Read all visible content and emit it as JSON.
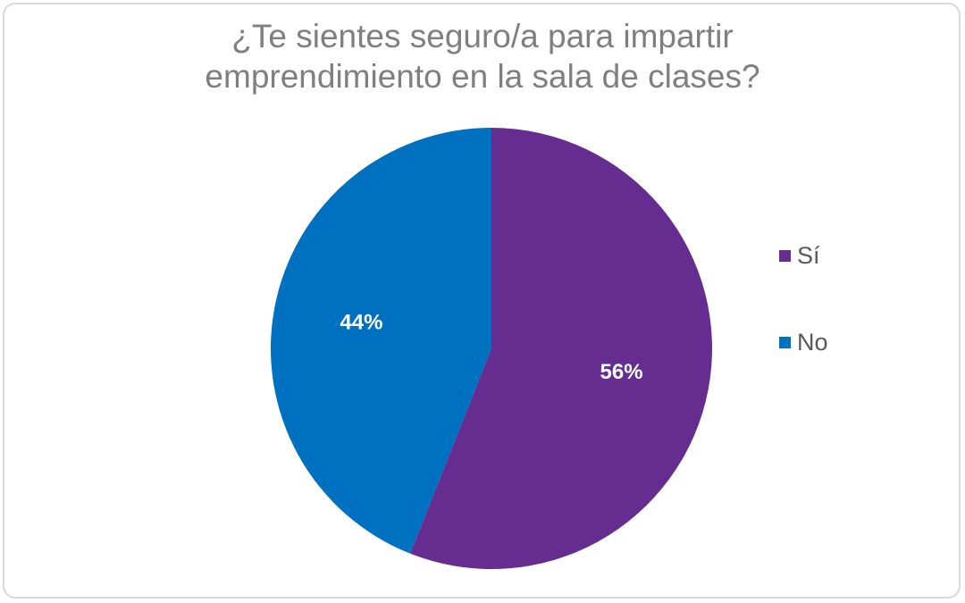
{
  "chart_data": {
    "type": "pie",
    "title_lines": [
      "¿Te sientes seguro/a para impartir",
      "emprendimiento en la sala de clases?"
    ],
    "categories": [
      "Sí",
      "No"
    ],
    "values": [
      56,
      44
    ],
    "data_labels": [
      "56%",
      "44%"
    ],
    "colors": [
      "#662D91",
      "#0070C0"
    ],
    "legend_position": "right",
    "start_angle_deg": 0,
    "direction": "clockwise"
  }
}
